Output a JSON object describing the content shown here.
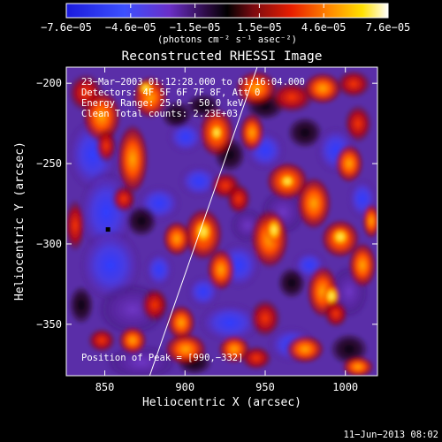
{
  "chart_data": {
    "type": "heatmap",
    "title": "Reconstructed RHESSI Image",
    "xlabel": "Heliocentric X (arcsec)",
    "ylabel": "Heliocentric Y (arcsec)",
    "xlim": [
      826,
      1020
    ],
    "ylim": [
      -382,
      -190
    ],
    "x_ticks": [
      850,
      900,
      950,
      1000
    ],
    "x_tick_labels": [
      "850",
      "900",
      "950",
      "1000"
    ],
    "y_ticks": [
      -200,
      -250,
      -300,
      -350
    ],
    "y_tick_labels": [
      "−200",
      "−250",
      "−300",
      "−350"
    ],
    "colorbar": {
      "range": [
        -7.6e-05,
        7.6e-05
      ],
      "tick_labels": [
        "−7.6e−05",
        "−4.6e−05",
        "−1.5e−05",
        "1.5e−05",
        "4.6e−05",
        "7.6e−05"
      ],
      "unit_label": "(photons cm⁻² s⁻¹ asec⁻²)"
    },
    "info_lines": [
      "23−Mar−2003 01:12:28.000 to 01:16:04.000",
      "Detectors: 4F 5F 6F 7F 8F, Att 0",
      "Energy Range: 25.0 − 50.0 keV",
      "Clean    Total counts: 2.23E+03"
    ],
    "peak_label": "Position of Peak = [990,−332]",
    "peak_position": [
      990,
      -332
    ],
    "marker_position": [
      852,
      -291
    ],
    "limb_points": [
      [
        878,
        -382
      ],
      [
        945,
        -190
      ]
    ],
    "footer_date": "11−Jun−2013 08:02",
    "grid": false
  }
}
